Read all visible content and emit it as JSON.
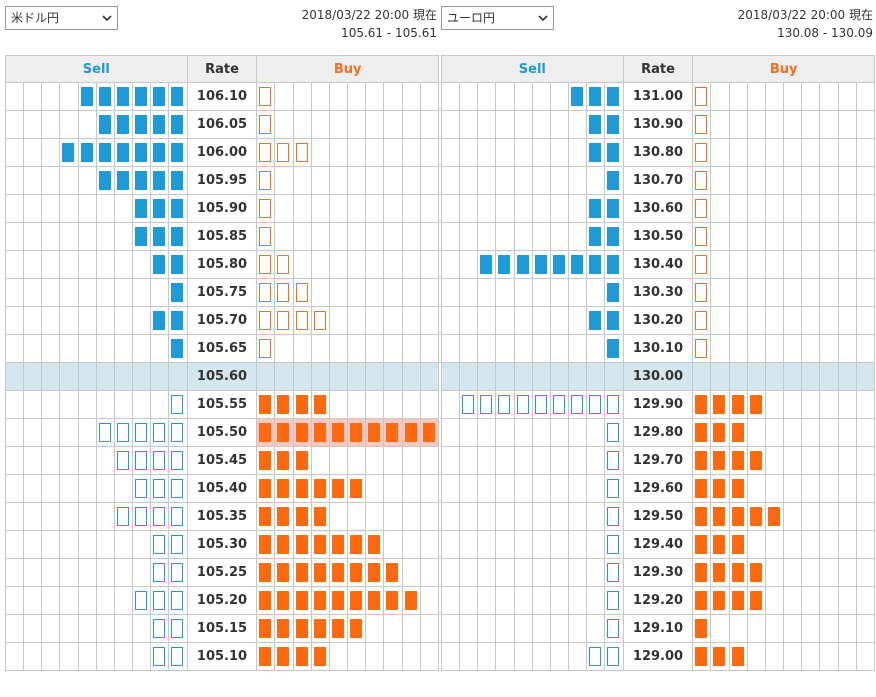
{
  "headers": {
    "sell": "Sell",
    "rate": "Rate",
    "buy": "Buy"
  },
  "colors": {
    "sell": "#1e9ad6",
    "buy": "#ff6a10",
    "current_row": "#d4e6ee",
    "highlight": "#f8c9c0"
  },
  "icons": {
    "select_arrow": "chevron-down-icon"
  },
  "panels": [
    {
      "pair": "米ドル円",
      "timestamp": "2018/03/22 20:00 現在",
      "range": "105.61 - 105.61",
      "current_rate": "105.60",
      "highlight_rate": "105.50",
      "rows": [
        {
          "rate": "106.10",
          "sell": 6,
          "buy": 1
        },
        {
          "rate": "106.05",
          "sell": 5,
          "buy": 1
        },
        {
          "rate": "106.00",
          "sell": 7,
          "buy": 3
        },
        {
          "rate": "105.95",
          "sell": 5,
          "buy": 1
        },
        {
          "rate": "105.90",
          "sell": 3,
          "buy": 1
        },
        {
          "rate": "105.85",
          "sell": 3,
          "buy": 1
        },
        {
          "rate": "105.80",
          "sell": 2,
          "buy": 2
        },
        {
          "rate": "105.75",
          "sell": 1,
          "buy": 3
        },
        {
          "rate": "105.70",
          "sell": 2,
          "buy": 4
        },
        {
          "rate": "105.65",
          "sell": 1,
          "buy": 1
        },
        {
          "rate": "105.60",
          "sell": 0,
          "buy": 0
        },
        {
          "rate": "105.55",
          "sell": 1,
          "buy": 4
        },
        {
          "rate": "105.50",
          "sell": 5,
          "buy": 10
        },
        {
          "rate": "105.45",
          "sell": 4,
          "buy": 3
        },
        {
          "rate": "105.40",
          "sell": 3,
          "buy": 6
        },
        {
          "rate": "105.35",
          "sell": 4,
          "buy": 4
        },
        {
          "rate": "105.30",
          "sell": 2,
          "buy": 7
        },
        {
          "rate": "105.25",
          "sell": 2,
          "buy": 8
        },
        {
          "rate": "105.20",
          "sell": 3,
          "buy": 9
        },
        {
          "rate": "105.15",
          "sell": 2,
          "buy": 6
        },
        {
          "rate": "105.10",
          "sell": 2,
          "buy": 4
        }
      ]
    },
    {
      "pair": "ユーロ円",
      "timestamp": "2018/03/22 20:00 現在",
      "range": "130.08 - 130.09",
      "current_rate": "130.00",
      "highlight_rate": "",
      "rows": [
        {
          "rate": "131.00",
          "sell": 3,
          "buy": 1
        },
        {
          "rate": "130.90",
          "sell": 2,
          "buy": 1
        },
        {
          "rate": "130.80",
          "sell": 2,
          "buy": 1
        },
        {
          "rate": "130.70",
          "sell": 1,
          "buy": 1
        },
        {
          "rate": "130.60",
          "sell": 2,
          "buy": 1
        },
        {
          "rate": "130.50",
          "sell": 2,
          "buy": 1
        },
        {
          "rate": "130.40",
          "sell": 8,
          "buy": 1
        },
        {
          "rate": "130.30",
          "sell": 1,
          "buy": 1
        },
        {
          "rate": "130.20",
          "sell": 2,
          "buy": 1
        },
        {
          "rate": "130.10",
          "sell": 1,
          "buy": 1
        },
        {
          "rate": "130.00",
          "sell": 0,
          "buy": 0
        },
        {
          "rate": "129.90",
          "sell": 9,
          "buy": 4
        },
        {
          "rate": "129.80",
          "sell": 1,
          "buy": 3
        },
        {
          "rate": "129.70",
          "sell": 1,
          "buy": 4
        },
        {
          "rate": "129.60",
          "sell": 1,
          "buy": 3
        },
        {
          "rate": "129.50",
          "sell": 1,
          "buy": 5
        },
        {
          "rate": "129.40",
          "sell": 1,
          "buy": 3
        },
        {
          "rate": "129.30",
          "sell": 1,
          "buy": 4
        },
        {
          "rate": "129.20",
          "sell": 1,
          "buy": 4
        },
        {
          "rate": "129.10",
          "sell": 1,
          "buy": 1
        },
        {
          "rate": "129.00",
          "sell": 2,
          "buy": 3
        }
      ]
    }
  ]
}
